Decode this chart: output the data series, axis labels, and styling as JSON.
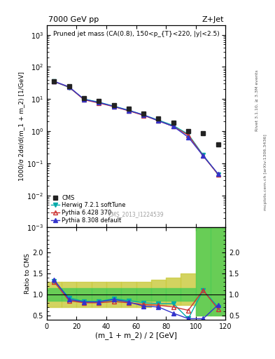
{
  "title_left": "7000 GeV pp",
  "title_right": "Z+Jet",
  "plot_title": "Pruned jet mass (CA(0.8), 150<p_{T}<220, |y|<2.5)",
  "ylabel_main": "1000/σ 2dσ/d(m_1 + m_2) [1/GeV]",
  "ylabel_ratio": "Ratio to CMS",
  "xlabel": "(m_1 + m_2) / 2 [GeV]",
  "watermark": "CMS_2013_I1224539",
  "right_label": "mcplots.cern.ch [arXiv:1306.3436]",
  "rivet_label": "Rivet 3.1.10, ≥ 3.3M events",
  "x_data": [
    5,
    15,
    25,
    35,
    45,
    55,
    65,
    75,
    85,
    95,
    105,
    115
  ],
  "cms_y": [
    35.0,
    25.0,
    10.5,
    8.5,
    6.5,
    5.0,
    3.5,
    2.5,
    1.8,
    1.0,
    0.85,
    0.38
  ],
  "herwig_y": [
    35.0,
    23.0,
    10.0,
    8.0,
    6.0,
    4.5,
    3.2,
    2.2,
    1.5,
    0.8,
    0.18,
    0.045
  ],
  "pythia6_y": [
    35.0,
    23.5,
    9.5,
    7.5,
    5.8,
    4.3,
    3.1,
    2.1,
    1.4,
    0.75,
    0.17,
    0.045
  ],
  "pythia8_y": [
    35.5,
    24.0,
    9.8,
    7.8,
    5.9,
    4.4,
    3.2,
    2.1,
    1.4,
    0.65,
    0.17,
    0.047
  ],
  "herwig_ratio": [
    1.32,
    0.92,
    0.83,
    0.83,
    0.9,
    0.85,
    0.8,
    0.78,
    0.78,
    0.42,
    1.1,
    0.7
  ],
  "pythia6_ratio": [
    1.3,
    0.85,
    0.8,
    0.8,
    0.83,
    0.8,
    0.76,
    0.74,
    0.7,
    0.62,
    1.1,
    0.65
  ],
  "pythia8_ratio": [
    1.35,
    0.88,
    0.82,
    0.82,
    0.88,
    0.82,
    0.72,
    0.7,
    0.55,
    0.42,
    0.42,
    0.75
  ],
  "cms_color": "#222222",
  "herwig_color": "#00aaaa",
  "pythia6_color": "#cc3333",
  "pythia8_color": "#3333cc",
  "band_x_edges": [
    0,
    10,
    20,
    30,
    40,
    50,
    60,
    70,
    80,
    90,
    100,
    110,
    120
  ],
  "band_yellow_lo": [
    0.7,
    0.7,
    0.7,
    0.7,
    0.7,
    0.7,
    0.7,
    0.75,
    0.75,
    0.75,
    0.5,
    0.5
  ],
  "band_yellow_hi": [
    1.3,
    1.3,
    1.3,
    1.3,
    1.3,
    1.3,
    1.3,
    1.35,
    1.4,
    1.5,
    2.6,
    2.6
  ],
  "band_green_lo": [
    0.85,
    0.85,
    0.85,
    0.85,
    0.85,
    0.85,
    0.85,
    0.85,
    0.85,
    0.85,
    0.5,
    0.5
  ],
  "band_green_hi": [
    1.15,
    1.15,
    1.15,
    1.15,
    1.15,
    1.15,
    1.15,
    1.15,
    1.15,
    1.15,
    2.6,
    2.6
  ],
  "green_band_color": "#55cc55",
  "yellow_band_color": "#cccc44",
  "ylim_main": [
    0.001,
    2000
  ],
  "ylim_ratio": [
    0.4,
    2.6
  ],
  "xlim": [
    0,
    120
  ],
  "yticks_ratio": [
    0.5,
    1.0,
    1.5,
    2.0
  ]
}
